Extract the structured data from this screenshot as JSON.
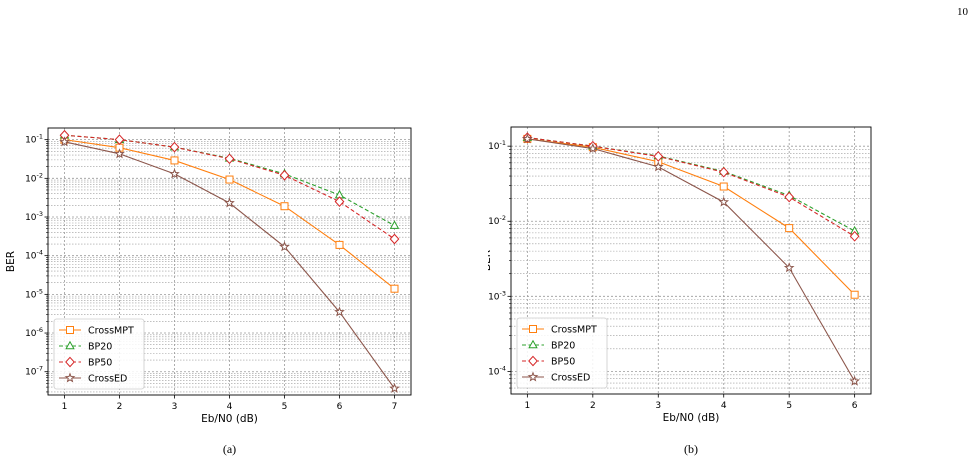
{
  "page_number": "10",
  "colors": {
    "CrossMPT": "#ff7f0e",
    "BP20": "#2ca02c",
    "BP50": "#d62728",
    "CrossED": "#8c564b",
    "grid": "#9a9a9a"
  },
  "chart_data": [
    {
      "type": "line",
      "caption": "(a)",
      "xlabel": "Eb/N0 (dB)",
      "ylabel": "BER",
      "yscale": "log",
      "grid": true,
      "legend": "lower-left",
      "xlim": [
        0.7,
        7.3
      ],
      "ylim": [
        2.5e-08,
        0.2
      ],
      "x_ticks": [
        1,
        2,
        3,
        4,
        5,
        6,
        7
      ],
      "y_ticks": [
        {
          "v": 0.1,
          "label": "10^-1"
        },
        {
          "v": 0.01,
          "label": "10^-2"
        },
        {
          "v": 0.001,
          "label": "10^-3"
        },
        {
          "v": 0.0001,
          "label": "10^-4"
        },
        {
          "v": 1e-05,
          "label": "10^-5"
        },
        {
          "v": 1e-06,
          "label": "10^-6"
        },
        {
          "v": 1e-07,
          "label": "10^-7"
        }
      ],
      "x": [
        1,
        2,
        3,
        4,
        5,
        6,
        7
      ],
      "series": [
        {
          "name": "CrossMPT",
          "marker": "square",
          "dash": false,
          "values": [
            0.1,
            0.062,
            0.029,
            0.0093,
            0.0019,
            0.00019,
            1.4e-05
          ]
        },
        {
          "name": "BP20",
          "marker": "triangle",
          "dash": true,
          "values": [
            0.13,
            0.1,
            0.064,
            0.033,
            0.013,
            0.0037,
            0.0006
          ]
        },
        {
          "name": "BP50",
          "marker": "diamond",
          "dash": true,
          "values": [
            0.13,
            0.1,
            0.064,
            0.032,
            0.012,
            0.0025,
            0.00027
          ]
        },
        {
          "name": "CrossED",
          "marker": "star",
          "dash": false,
          "values": [
            0.088,
            0.043,
            0.013,
            0.0023,
            0.00017,
            3.5e-06,
            3.7e-08
          ]
        }
      ]
    },
    {
      "type": "line",
      "caption": "(b)",
      "xlabel": "Eb/N0 (dB)",
      "ylabel": "BER",
      "yscale": "log",
      "grid": true,
      "legend": "lower-left",
      "xlim": [
        0.75,
        6.25
      ],
      "ylim": [
        5e-05,
        0.18
      ],
      "x_ticks": [
        1,
        2,
        3,
        4,
        5,
        6
      ],
      "y_ticks": [
        {
          "v": 0.1,
          "label": "10^-1"
        },
        {
          "v": 0.01,
          "label": "10^-2"
        },
        {
          "v": 0.001,
          "label": "10^-3"
        },
        {
          "v": 0.0001,
          "label": "10^-4"
        }
      ],
      "x": [
        1,
        2,
        3,
        4,
        5,
        6
      ],
      "series": [
        {
          "name": "CrossMPT",
          "marker": "square",
          "dash": false,
          "values": [
            0.125,
            0.097,
            0.062,
            0.029,
            0.0081,
            0.00105
          ]
        },
        {
          "name": "BP20",
          "marker": "triangle",
          "dash": true,
          "values": [
            0.13,
            0.1,
            0.074,
            0.046,
            0.022,
            0.0074
          ]
        },
        {
          "name": "BP50",
          "marker": "diamond",
          "dash": true,
          "values": [
            0.13,
            0.1,
            0.073,
            0.045,
            0.021,
            0.0063
          ]
        },
        {
          "name": "CrossED",
          "marker": "star",
          "dash": false,
          "values": [
            0.125,
            0.093,
            0.053,
            0.018,
            0.0024,
            7.4e-05
          ]
        }
      ]
    }
  ]
}
